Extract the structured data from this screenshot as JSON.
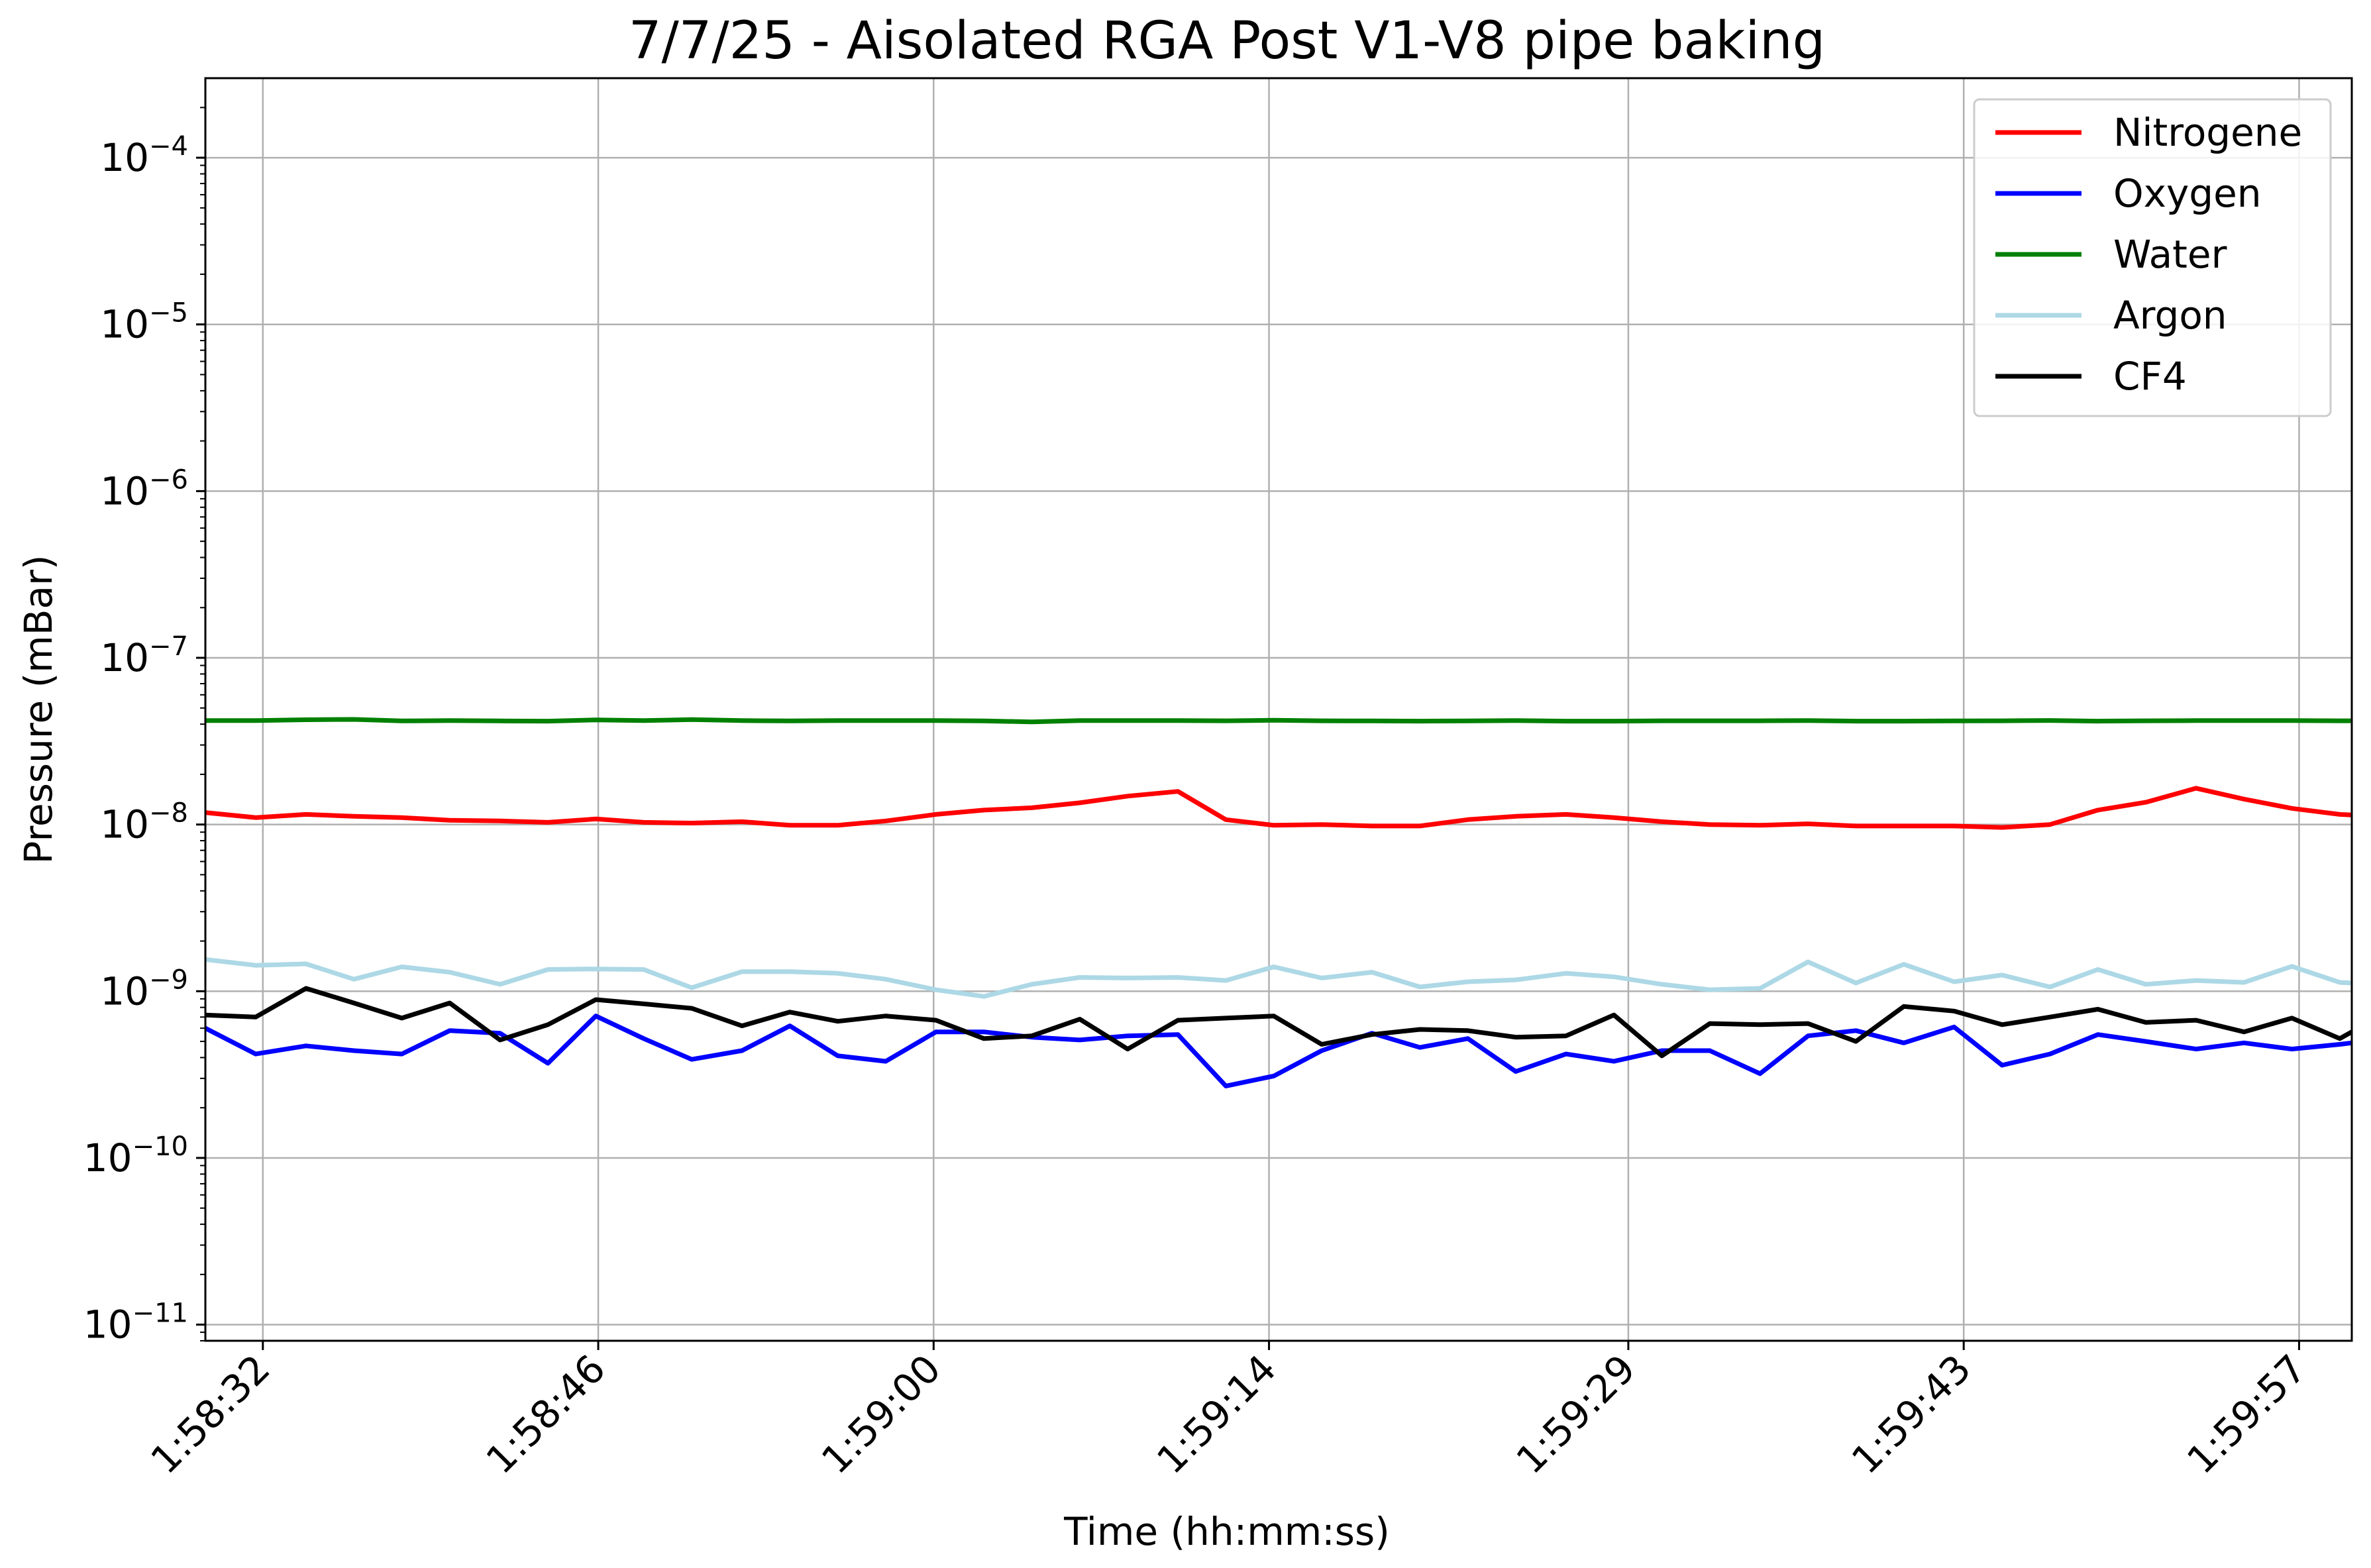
{
  "chart_data": {
    "type": "line",
    "title": "7/7/25 - Aisolated RGA Post V1-V8 pipe baking",
    "xlabel": "Time (hh:mm:ss)",
    "ylabel": "Pressure (mBar)",
    "y_scale": "log",
    "ylim": [
      8e-12,
      0.0003
    ],
    "xlim": [
      "1:58:29.6",
      "1:59:59.2"
    ],
    "x_unit": "time (hh:mm:ss)",
    "grid": true,
    "legend_position": "top-right",
    "x_ticks": [
      "1:58:32",
      "1:58:46",
      "1:59:00",
      "1:59:14",
      "1:59:29",
      "1:59:43",
      "1:59:57"
    ],
    "y_ticks": [
      {
        "value": 1e-11,
        "base": "10",
        "exp": "−11"
      },
      {
        "value": 1e-10,
        "base": "10",
        "exp": "−10"
      },
      {
        "value": 1e-09,
        "base": "10",
        "exp": "−9"
      },
      {
        "value": 1e-08,
        "base": "10",
        "exp": "−8"
      },
      {
        "value": 1e-07,
        "base": "10",
        "exp": "−7"
      },
      {
        "value": 1e-06,
        "base": "10",
        "exp": "−6"
      },
      {
        "value": 1e-05,
        "base": "10",
        "exp": "−5"
      },
      {
        "value": 0.0001,
        "base": "10",
        "exp": "−4"
      }
    ],
    "x": [
      "1:58:29.6",
      "1:58:31.7",
      "1:58:33.8",
      "1:58:35.8",
      "1:58:37.8",
      "1:58:39.8",
      "1:58:41.9",
      "1:58:43.9",
      "1:58:45.9",
      "1:58:47.9",
      "1:58:49.9",
      "1:58:52.0",
      "1:58:54.0",
      "1:58:56.0",
      "1:58:58.0",
      "1:59:00.1",
      "1:59:02.1",
      "1:59:04.1",
      "1:59:06.1",
      "1:59:08.1",
      "1:59:10.2",
      "1:59:12.2",
      "1:59:14.2",
      "1:59:16.2",
      "1:59:18.3",
      "1:59:20.3",
      "1:59:22.3",
      "1:59:24.3",
      "1:59:26.4",
      "1:59:28.4",
      "1:59:30.4",
      "1:59:32.4",
      "1:59:34.5",
      "1:59:36.5",
      "1:59:38.5",
      "1:59:40.5",
      "1:59:42.6",
      "1:59:44.6",
      "1:59:46.6",
      "1:59:48.6",
      "1:59:50.6",
      "1:59:52.7",
      "1:59:54.7",
      "1:59:56.7",
      "1:59:58.7",
      "1:59:59.2"
    ],
    "series": [
      {
        "name": "Nitrogene",
        "color": "#ff0000",
        "values": [
          1.18e-08,
          1.1e-08,
          1.15e-08,
          1.12e-08,
          1.1e-08,
          1.06e-08,
          1.05e-08,
          1.03e-08,
          1.08e-08,
          1.03e-08,
          1.02e-08,
          1.04e-08,
          9.9e-09,
          9.9e-09,
          1.05e-08,
          1.15e-08,
          1.22e-08,
          1.26e-08,
          1.35e-08,
          1.48e-08,
          1.58e-08,
          1.07e-08,
          9.9e-09,
          1e-08,
          9.8e-09,
          9.8e-09,
          1.07e-08,
          1.12e-08,
          1.15e-08,
          1.1e-08,
          1.04e-08,
          1e-08,
          9.9e-09,
          1.01e-08,
          9.8e-09,
          9.8e-09,
          9.8e-09,
          9.6e-09,
          1e-08,
          1.22e-08,
          1.36e-08,
          1.65e-08,
          1.42e-08,
          1.25e-08,
          1.15e-08,
          1.14e-08
        ]
      },
      {
        "name": "Oxygen",
        "color": "#0000ff",
        "values": [
          6e-10,
          4.2e-10,
          4.7e-10,
          4.4e-10,
          4.2e-10,
          5.8e-10,
          5.6e-10,
          3.7e-10,
          7.1e-10,
          5.2e-10,
          3.9e-10,
          4.4e-10,
          6.2e-10,
          4.1e-10,
          3.8e-10,
          5.7e-10,
          5.7e-10,
          5.3e-10,
          5.1e-10,
          5.4e-10,
          5.5e-10,
          2.7e-10,
          3.1e-10,
          4.4e-10,
          5.6e-10,
          4.6e-10,
          5.2e-10,
          3.3e-10,
          4.2e-10,
          3.8e-10,
          4.4e-10,
          4.4e-10,
          3.2e-10,
          5.4e-10,
          5.8e-10,
          4.9e-10,
          6.1e-10,
          3.6e-10,
          4.2e-10,
          5.5e-10,
          5e-10,
          4.5e-10,
          4.9e-10,
          4.5e-10,
          4.8e-10,
          4.9e-10
        ]
      },
      {
        "name": "Water",
        "color": "#008000",
        "values": [
          4.2e-08,
          4.2e-08,
          4.25e-08,
          4.27e-08,
          4.18e-08,
          4.2e-08,
          4.18e-08,
          4.17e-08,
          4.24e-08,
          4.2e-08,
          4.26e-08,
          4.2e-08,
          4.18e-08,
          4.2e-08,
          4.2e-08,
          4.2e-08,
          4.18e-08,
          4.13e-08,
          4.2e-08,
          4.2e-08,
          4.2e-08,
          4.19e-08,
          4.22e-08,
          4.19e-08,
          4.18e-08,
          4.17e-08,
          4.18e-08,
          4.2e-08,
          4.17e-08,
          4.17e-08,
          4.19e-08,
          4.19e-08,
          4.19e-08,
          4.2e-08,
          4.17e-08,
          4.17e-08,
          4.18e-08,
          4.19e-08,
          4.21e-08,
          4.17e-08,
          4.19e-08,
          4.2e-08,
          4.2e-08,
          4.2e-08,
          4.19e-08,
          4.19e-08
        ]
      },
      {
        "name": "Argon",
        "color": "#add8e6",
        "values": [
          1.55e-09,
          1.43e-09,
          1.46e-09,
          1.18e-09,
          1.4e-09,
          1.3e-09,
          1.1e-09,
          1.35e-09,
          1.36e-09,
          1.35e-09,
          1.05e-09,
          1.31e-09,
          1.31e-09,
          1.28e-09,
          1.18e-09,
          1.02e-09,
          9.3e-10,
          1.1e-09,
          1.21e-09,
          1.2e-09,
          1.21e-09,
          1.16e-09,
          1.4e-09,
          1.2e-09,
          1.3e-09,
          1.06e-09,
          1.14e-09,
          1.17e-09,
          1.28e-09,
          1.22e-09,
          1.1e-09,
          1.02e-09,
          1.04e-09,
          1.5e-09,
          1.12e-09,
          1.45e-09,
          1.14e-09,
          1.25e-09,
          1.06e-09,
          1.35e-09,
          1.1e-09,
          1.16e-09,
          1.13e-09,
          1.41e-09,
          1.13e-09,
          1.12e-09
        ]
      },
      {
        "name": "CF4",
        "color": "#000000",
        "values": [
          7.2e-10,
          7e-10,
          1.04e-09,
          8.5e-10,
          6.9e-10,
          8.5e-10,
          5.1e-10,
          6.3e-10,
          8.9e-10,
          8.4e-10,
          7.9e-10,
          6.2e-10,
          7.5e-10,
          6.6e-10,
          7.1e-10,
          6.7e-10,
          5.2e-10,
          5.4e-10,
          6.8e-10,
          4.5e-10,
          6.7e-10,
          6.9e-10,
          7.1e-10,
          4.8e-10,
          5.5e-10,
          5.9e-10,
          5.8e-10,
          5.3e-10,
          5.4e-10,
          7.2e-10,
          4.1e-10,
          6.4e-10,
          6.3e-10,
          6.4e-10,
          5e-10,
          8.1e-10,
          7.6e-10,
          6.3e-10,
          7e-10,
          7.8e-10,
          6.5e-10,
          6.7e-10,
          5.7e-10,
          6.9e-10,
          5.2e-10,
          5.7e-10
        ]
      }
    ]
  }
}
